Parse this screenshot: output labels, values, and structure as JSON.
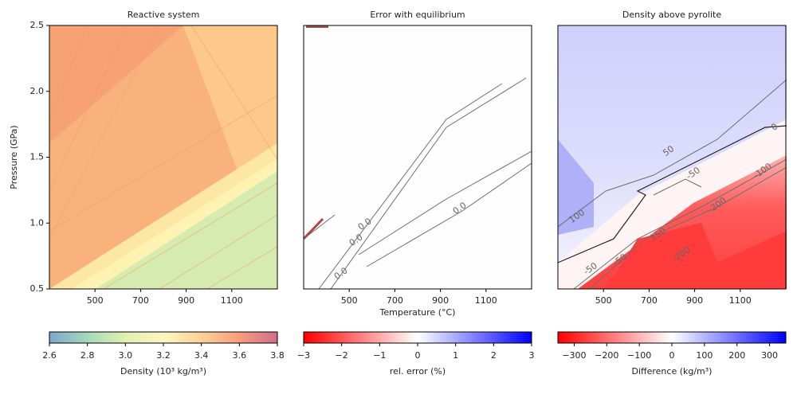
{
  "chart_data": [
    {
      "type": "contour",
      "title": "Reactive system",
      "ylabel": "Pressure (GPa)",
      "xlim": [
        300,
        1300
      ],
      "xticks": [
        500,
        700,
        900,
        1100
      ],
      "ylim": [
        0.5,
        2.5
      ],
      "yticks": [
        {
          "value": 0.5,
          "label": "0.5"
        },
        {
          "value": 1.0,
          "label": "1.0"
        },
        {
          "value": 1.5,
          "label": "1.5"
        },
        {
          "value": 2.0,
          "label": "2.0"
        },
        {
          "value": 2.5,
          "label": "2.5"
        }
      ],
      "clim": [
        2.6,
        3.8
      ],
      "cticks": [
        2.6,
        2.8,
        {
          "value": 3.0,
          "label": "3.0"
        },
        3.2,
        3.4,
        3.6,
        3.8
      ],
      "clabel": "Density (10³ kg/m³)",
      "colormap": [
        "#5f8fc1",
        "#8fcfa8",
        "#d8ee9c",
        "#fdf4b0",
        "#fdc57e",
        "#f4865a",
        "#c7476f"
      ],
      "annotations": []
    },
    {
      "type": "contour",
      "title": "Error with equilibrium",
      "xlabel": "Temperature (°C)",
      "xlim": [
        300,
        1300
      ],
      "xticks": [
        500,
        700,
        900,
        1100
      ],
      "ylim": [
        0.5,
        2.5
      ],
      "clim": [
        -3,
        3
      ],
      "cticks": [
        {
          "value": -3,
          "label": "−3"
        },
        {
          "value": -2,
          "label": "−2"
        },
        {
          "value": -1,
          "label": "−1"
        },
        0,
        1,
        2,
        3
      ],
      "clabel": "rel. error (%)",
      "colormap": [
        "#ff0000",
        "#ffffff",
        "#0000ff"
      ],
      "annotations": [
        "0.0",
        "0.0",
        "0.0",
        "0.0"
      ]
    },
    {
      "type": "contour",
      "title": "Density above pyrolite",
      "xlim": [
        300,
        1300
      ],
      "xticks": [
        500,
        700,
        900,
        1100
      ],
      "ylim": [
        0.5,
        2.5
      ],
      "clim": [
        -350,
        350
      ],
      "cticks": [
        {
          "value": -300,
          "label": "−300"
        },
        {
          "value": -200,
          "label": "−200"
        },
        {
          "value": -100,
          "label": "−100"
        },
        0,
        100,
        200,
        300
      ],
      "clabel": "Difference (kg/m³)",
      "colormap": [
        "#ff0000",
        "#ffffff",
        "#0000ff"
      ],
      "annotations": [
        "50",
        "-50",
        "-100",
        "100",
        "150",
        "-50",
        "-200",
        "0",
        "-200",
        "-50"
      ]
    }
  ]
}
